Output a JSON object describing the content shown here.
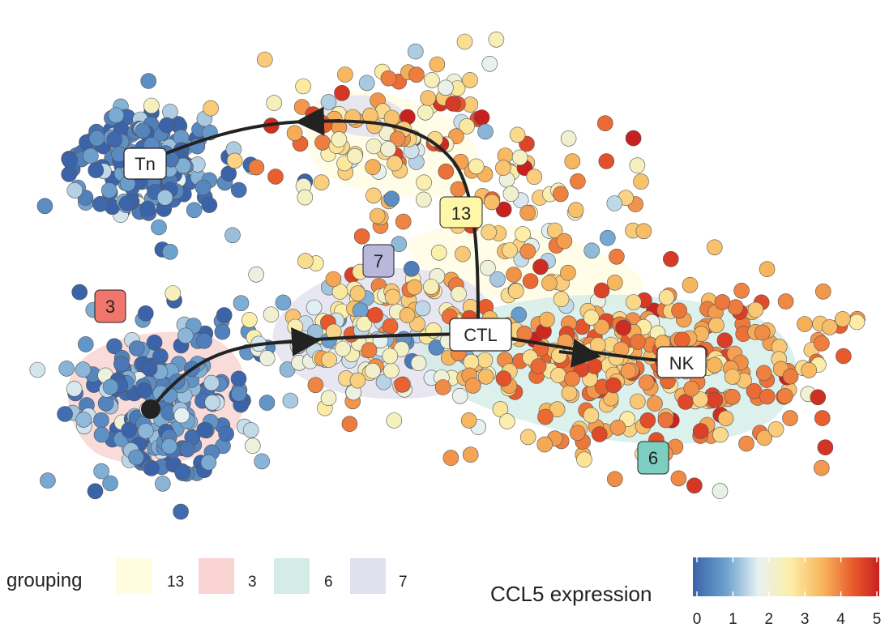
{
  "chart_data": {
    "type": "scatter",
    "title": "",
    "xlabel": "",
    "ylabel": "",
    "grid": false,
    "point_count_approx": 1000,
    "trajectory": {
      "nodes": [
        "Tn",
        "CTL",
        "NK"
      ],
      "edges": [
        [
          "root",
          "CTL"
        ],
        [
          "CTL",
          "Tn"
        ],
        [
          "CTL",
          "NK"
        ]
      ]
    },
    "cluster_labels": [
      {
        "id": "13",
        "color": "#FFF7A8"
      },
      {
        "id": "7",
        "color": "#B9B8DA"
      },
      {
        "id": "3",
        "color": "#F0766D"
      },
      {
        "id": "6",
        "color": "#7CCEC0"
      }
    ],
    "grouping_legend": {
      "title": "grouping",
      "entries": [
        {
          "label": "13",
          "color": "#FFFCE0"
        },
        {
          "label": "3",
          "color": "#F8D3D1"
        },
        {
          "label": "6",
          "color": "#D3ECE7"
        },
        {
          "label": "7",
          "color": "#E1E0EE"
        }
      ]
    },
    "color_legend": {
      "title": "CCL5 expression",
      "min": 0,
      "max": 5,
      "ticks": [
        "0",
        "1",
        "2",
        "3",
        "4",
        "5"
      ],
      "palette": [
        "#3A63AA",
        "#6DA2CF",
        "#E6F1F3",
        "#FCEFA8",
        "#F7B45B",
        "#E85A2C",
        "#C8201F"
      ]
    },
    "clusters_ccl5": {
      "Tn_cluster": {
        "mean": 0.4,
        "spread": 0.6
      },
      "cluster_3": {
        "mean": 0.5,
        "spread": 0.6
      },
      "cluster_13": {
        "mean": 3.0,
        "spread": 1.0
      },
      "cluster_7": {
        "mean": 2.3,
        "spread": 0.9
      },
      "cluster_6": {
        "mean": 3.5,
        "spread": 0.7
      }
    }
  }
}
